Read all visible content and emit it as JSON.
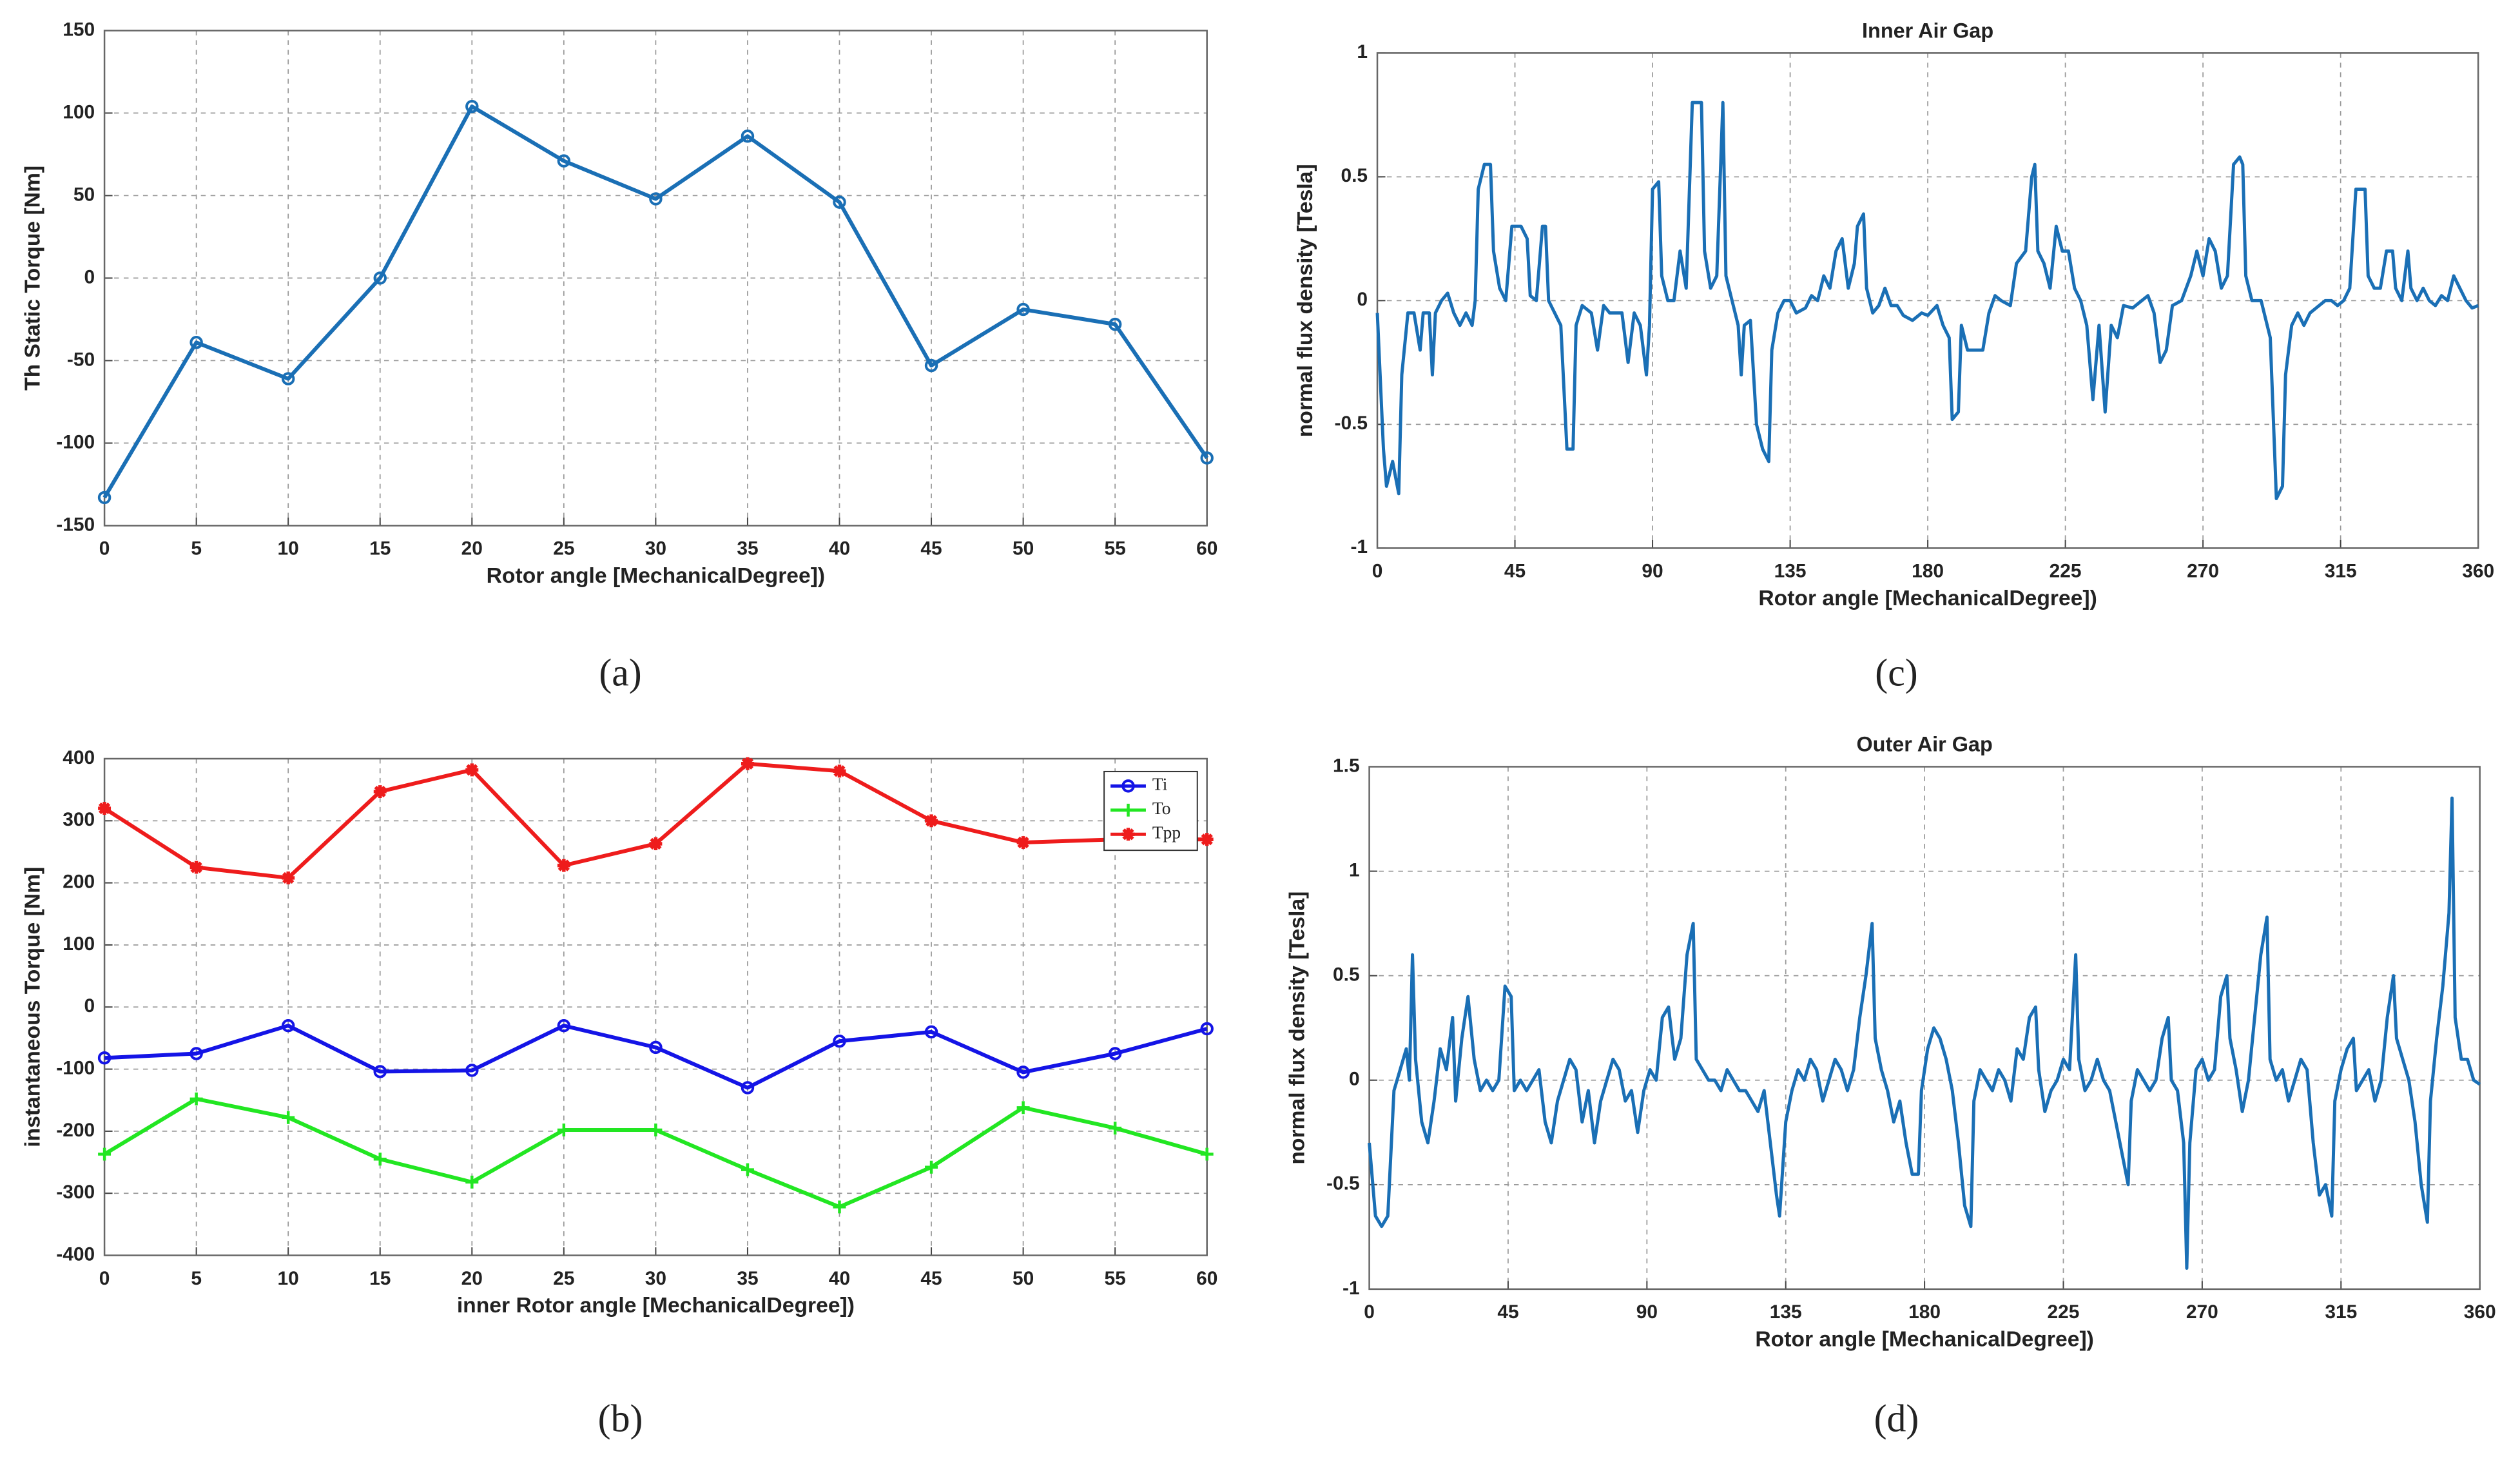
{
  "chart_data": [
    {
      "type": "line",
      "caption": "(a)",
      "xlabel": "Rotor angle [MechanicalDegree])",
      "ylabel": "Th Static Torque [Nm]",
      "x": [
        0,
        5,
        10,
        15,
        20,
        25,
        30,
        35,
        40,
        45,
        50,
        55,
        60
      ],
      "series": [
        {
          "color": "#1a6fb5",
          "marker": "o",
          "values": [
            -133,
            -39,
            -61,
            0,
            104,
            71,
            48,
            86,
            46,
            -53,
            -19,
            -28,
            -109
          ]
        }
      ],
      "xlim": [
        0,
        60
      ],
      "xticks": [
        0,
        5,
        10,
        15,
        20,
        25,
        30,
        35,
        40,
        45,
        50,
        55,
        60
      ],
      "ylim": [
        -150,
        150
      ],
      "yticks": [
        -150,
        -100,
        -50,
        0,
        50,
        100,
        150
      ],
      "grid": true
    },
    {
      "type": "line",
      "caption": "(b)",
      "xlabel": "inner Rotor angle [MechanicalDegree])",
      "ylabel": "instantaneous Torque [Nm]",
      "x": [
        0,
        5,
        10,
        15,
        20,
        25,
        30,
        35,
        40,
        45,
        50,
        55,
        60
      ],
      "series": [
        {
          "name": "Ti",
          "color": "#1414e6",
          "marker": "o",
          "values": [
            -82,
            -75,
            -30,
            -104,
            -102,
            -30,
            -65,
            -130,
            -55,
            -40,
            -105,
            -75,
            -35
          ]
        },
        {
          "name": "To",
          "color": "#22e622",
          "marker": "+",
          "values": [
            -237,
            -148,
            -178,
            -245,
            -282,
            -198,
            -198,
            -262,
            -322,
            -258,
            -162,
            -195,
            -237
          ]
        },
        {
          "name": "Tpp",
          "color": "#ee1c1c",
          "marker": "*",
          "values": [
            320,
            225,
            208,
            347,
            382,
            228,
            263,
            392,
            380,
            300,
            265,
            270,
            270
          ]
        }
      ],
      "legend": "upper right",
      "xlim": [
        0,
        60
      ],
      "xticks": [
        0,
        5,
        10,
        15,
        20,
        25,
        30,
        35,
        40,
        45,
        50,
        55,
        60
      ],
      "ylim": [
        -400,
        400
      ],
      "yticks": [
        -400,
        -300,
        -200,
        -100,
        0,
        100,
        200,
        300,
        400
      ],
      "grid": true
    },
    {
      "type": "line",
      "caption": "(c)",
      "title": "Inner Air Gap",
      "xlabel": "Rotor angle [MechanicalDegree])",
      "ylabel": "normal flux density [Tesla]",
      "x": [
        0,
        2,
        3,
        5,
        7,
        8,
        10,
        12,
        14,
        15,
        17,
        18,
        19,
        21,
        23,
        25,
        27,
        29,
        31,
        32,
        33,
        35,
        37,
        38,
        40,
        42,
        44,
        47,
        49,
        50,
        52,
        54,
        55,
        56,
        60,
        62,
        64,
        65,
        67,
        70,
        72,
        74,
        76,
        80,
        82,
        84,
        86,
        88,
        89,
        90,
        92,
        93,
        95,
        97,
        99,
        101,
        103,
        106,
        107,
        109,
        111,
        113,
        114,
        116,
        118,
        119,
        120,
        122,
        124,
        126,
        128,
        129,
        131,
        133,
        135,
        137,
        140,
        142,
        144,
        146,
        148,
        150,
        152,
        154,
        156,
        157,
        159,
        160,
        162,
        164,
        166,
        168,
        170,
        172,
        175,
        178,
        180,
        183,
        185,
        187,
        188,
        190,
        191,
        193,
        195,
        198,
        200,
        202,
        204,
        207,
        209,
        212,
        214,
        215,
        216,
        218,
        220,
        222,
        224,
        226,
        228,
        230,
        232,
        234,
        236,
        238,
        240,
        242,
        244,
        247,
        250,
        252,
        254,
        256,
        258,
        260,
        263,
        266,
        268,
        270,
        272,
        274,
        276,
        278,
        280,
        282,
        283,
        284,
        286,
        289,
        292,
        294,
        296,
        297,
        299,
        301,
        303,
        305,
        307,
        310,
        312,
        314,
        316,
        318,
        320,
        323,
        324,
        326,
        328,
        330,
        332,
        333,
        335,
        337,
        338,
        340,
        342,
        344,
        346,
        348,
        350,
        352,
        354,
        356,
        358,
        360
      ],
      "series": [
        {
          "color": "#1a6fb5",
          "values": [
            -0.05,
            -0.6,
            -0.75,
            -0.65,
            -0.78,
            -0.3,
            -0.05,
            -0.05,
            -0.2,
            -0.05,
            -0.05,
            -0.3,
            -0.05,
            0.0,
            0.03,
            -0.05,
            -0.1,
            -0.05,
            -0.1,
            0.0,
            0.45,
            0.55,
            0.55,
            0.2,
            0.05,
            0.0,
            0.3,
            0.3,
            0.25,
            0.02,
            0.0,
            0.3,
            0.3,
            0.0,
            -0.1,
            -0.6,
            -0.6,
            -0.1,
            -0.02,
            -0.05,
            -0.2,
            -0.02,
            -0.05,
            -0.05,
            -0.25,
            -0.05,
            -0.1,
            -0.3,
            -0.1,
            0.45,
            0.48,
            0.1,
            0.0,
            0.0,
            0.2,
            0.05,
            0.8,
            0.8,
            0.2,
            0.05,
            0.1,
            0.8,
            0.1,
            0.0,
            -0.1,
            -0.3,
            -0.1,
            -0.08,
            -0.5,
            -0.6,
            -0.65,
            -0.2,
            -0.05,
            0.0,
            0.0,
            -0.05,
            -0.03,
            0.02,
            0.0,
            0.1,
            0.05,
            0.2,
            0.25,
            0.05,
            0.15,
            0.3,
            0.35,
            0.05,
            -0.05,
            -0.02,
            0.05,
            -0.02,
            -0.02,
            -0.06,
            -0.08,
            -0.05,
            -0.06,
            -0.02,
            -0.1,
            -0.15,
            -0.48,
            -0.45,
            -0.1,
            -0.2,
            -0.2,
            -0.2,
            -0.05,
            0.02,
            0.0,
            -0.02,
            0.15,
            0.2,
            0.5,
            0.55,
            0.2,
            0.15,
            0.05,
            0.3,
            0.2,
            0.2,
            0.05,
            0.0,
            -0.1,
            -0.4,
            -0.1,
            -0.45,
            -0.1,
            -0.15,
            -0.02,
            -0.03,
            0.0,
            0.02,
            -0.05,
            -0.25,
            -0.2,
            -0.02,
            0.0,
            0.1,
            0.2,
            0.1,
            0.25,
            0.2,
            0.05,
            0.1,
            0.55,
            0.58,
            0.55,
            0.1,
            0.0,
            0.0,
            -0.15,
            -0.8,
            -0.75,
            -0.3,
            -0.1,
            -0.05,
            -0.1,
            -0.05,
            -0.03,
            0.0,
            0.0,
            -0.02,
            0.0,
            0.05,
            0.45,
            0.45,
            0.1,
            0.05,
            0.05,
            0.2,
            0.2,
            0.05,
            0.0,
            0.2,
            0.05,
            0.0,
            0.05,
            0.0,
            -0.02,
            0.02,
            0.0,
            0.1,
            0.05,
            0.0,
            -0.03,
            -0.02
          ]
        }
      ],
      "xlim": [
        0,
        360
      ],
      "xticks": [
        0,
        45,
        90,
        135,
        180,
        225,
        270,
        315,
        360
      ],
      "ylim": [
        -1,
        1
      ],
      "yticks": [
        -1,
        -0.5,
        0,
        0.5,
        1
      ],
      "grid": true
    },
    {
      "type": "line",
      "caption": "(d)",
      "title": "Outer Air Gap",
      "xlabel": "Rotor angle [MechanicalDegree])",
      "ylabel": "normal flux density [Tesla]",
      "x": [
        0,
        2,
        4,
        6,
        8,
        10,
        12,
        13,
        14,
        15,
        17,
        19,
        21,
        23,
        25,
        27,
        28,
        30,
        32,
        34,
        36,
        38,
        40,
        42,
        44,
        46,
        47,
        49,
        51,
        53,
        55,
        57,
        59,
        61,
        63,
        65,
        67,
        69,
        71,
        73,
        75,
        77,
        79,
        81,
        83,
        85,
        87,
        89,
        91,
        93,
        95,
        97,
        99,
        101,
        103,
        105,
        106,
        108,
        110,
        112,
        114,
        116,
        118,
        120,
        122,
        124,
        126,
        128,
        130,
        132,
        133,
        135,
        137,
        139,
        141,
        143,
        145,
        147,
        149,
        151,
        153,
        155,
        157,
        159,
        161,
        163,
        164,
        166,
        168,
        170,
        172,
        174,
        176,
        178,
        179,
        181,
        183,
        185,
        187,
        189,
        191,
        193,
        195,
        196,
        198,
        200,
        202,
        204,
        206,
        208,
        210,
        212,
        214,
        216,
        217,
        219,
        221,
        223,
        225,
        227,
        229,
        230,
        232,
        234,
        236,
        238,
        240,
        242,
        244,
        246,
        247,
        249,
        251,
        253,
        255,
        257,
        259,
        260,
        262,
        264,
        265,
        266,
        268,
        270,
        272,
        274,
        276,
        278,
        279,
        281,
        283,
        285,
        287,
        289,
        291,
        292,
        294,
        296,
        298,
        300,
        302,
        304,
        306,
        308,
        310,
        312,
        313,
        315,
        317,
        319,
        320,
        322,
        324,
        326,
        328,
        330,
        332,
        333,
        335,
        337,
        339,
        341,
        343,
        344,
        346,
        348,
        350,
        351,
        352,
        354,
        356,
        358,
        360
      ],
      "series": [
        {
          "color": "#1a6fb5",
          "values": [
            -0.3,
            -0.65,
            -0.7,
            -0.65,
            -0.05,
            0.05,
            0.15,
            0.0,
            0.6,
            0.1,
            -0.2,
            -0.3,
            -0.1,
            0.15,
            0.05,
            0.3,
            -0.1,
            0.2,
            0.4,
            0.1,
            -0.05,
            0.0,
            -0.05,
            0.0,
            0.45,
            0.4,
            -0.05,
            0.0,
            -0.05,
            0.0,
            0.05,
            -0.2,
            -0.3,
            -0.1,
            0.0,
            0.1,
            0.05,
            -0.2,
            -0.05,
            -0.3,
            -0.1,
            0.0,
            0.1,
            0.05,
            -0.1,
            -0.05,
            -0.25,
            -0.05,
            0.05,
            0.0,
            0.3,
            0.35,
            0.1,
            0.2,
            0.6,
            0.75,
            0.1,
            0.05,
            0.0,
            0.0,
            -0.05,
            0.05,
            0.0,
            -0.05,
            -0.05,
            -0.1,
            -0.15,
            -0.05,
            -0.3,
            -0.55,
            -0.65,
            -0.2,
            -0.05,
            0.05,
            0.0,
            0.1,
            0.05,
            -0.1,
            0.0,
            0.1,
            0.05,
            -0.05,
            0.05,
            0.3,
            0.5,
            0.75,
            0.2,
            0.05,
            -0.05,
            -0.2,
            -0.1,
            -0.3,
            -0.45,
            -0.45,
            -0.05,
            0.15,
            0.25,
            0.2,
            0.1,
            -0.05,
            -0.3,
            -0.6,
            -0.7,
            -0.1,
            0.05,
            0.0,
            -0.05,
            0.05,
            0.0,
            -0.1,
            0.15,
            0.1,
            0.3,
            0.35,
            0.05,
            -0.15,
            -0.05,
            0.0,
            0.1,
            0.05,
            0.6,
            0.1,
            -0.05,
            0.0,
            0.1,
            0.0,
            -0.05,
            -0.2,
            -0.35,
            -0.5,
            -0.1,
            0.05,
            0.0,
            -0.05,
            0.0,
            0.2,
            0.3,
            0.0,
            -0.05,
            -0.3,
            -0.9,
            -0.3,
            0.05,
            0.1,
            0.0,
            0.05,
            0.4,
            0.5,
            0.2,
            0.05,
            -0.15,
            0.0,
            0.3,
            0.6,
            0.78,
            0.1,
            0.0,
            0.05,
            -0.1,
            0.0,
            0.1,
            0.05,
            -0.3,
            -0.55,
            -0.5,
            -0.65,
            -0.1,
            0.05,
            0.15,
            0.2,
            -0.05,
            0.0,
            0.05,
            -0.1,
            0.0,
            0.3,
            0.5,
            0.2,
            0.1,
            0.0,
            -0.2,
            -0.5,
            -0.68,
            -0.1,
            0.2,
            0.45,
            0.8,
            1.35,
            0.3,
            0.1,
            0.1,
            0.0,
            -0.02
          ]
        }
      ],
      "xlim": [
        0,
        360
      ],
      "xticks": [
        0,
        45,
        90,
        135,
        180,
        225,
        270,
        315,
        360
      ],
      "ylim": [
        -1,
        1.5
      ],
      "yticks": [
        -1,
        -0.5,
        0,
        0.5,
        1,
        1.5
      ],
      "grid": true
    }
  ]
}
